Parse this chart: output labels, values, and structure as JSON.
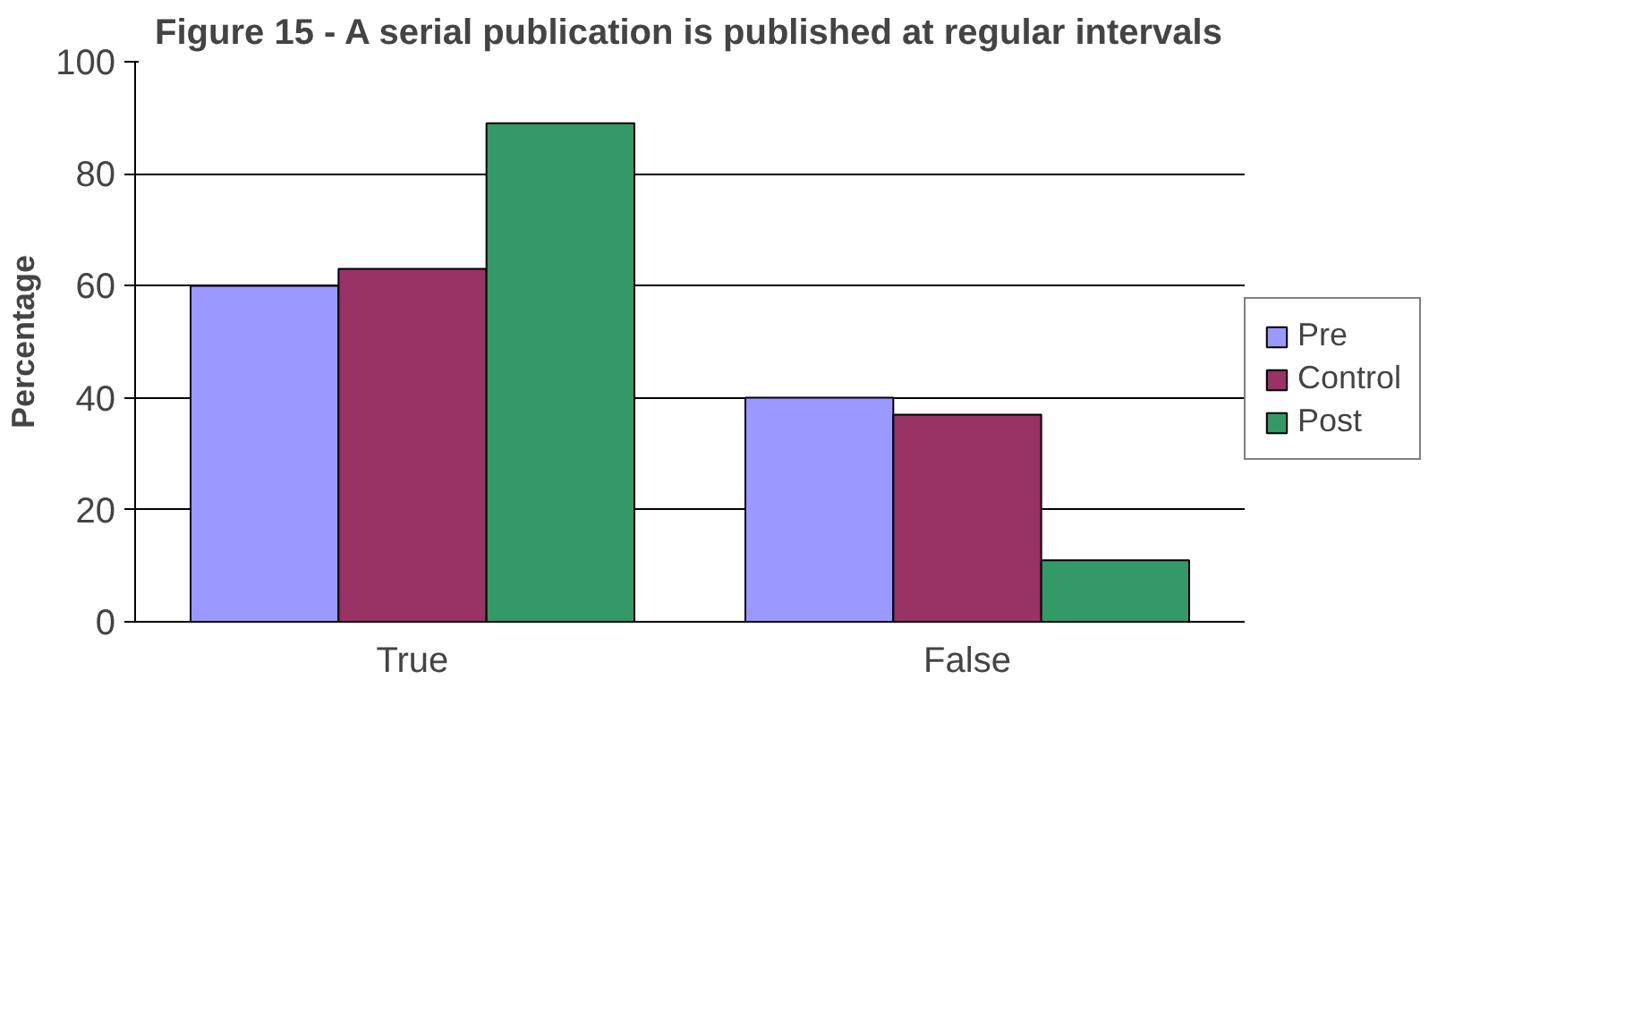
{
  "chart_data": {
    "type": "bar",
    "title": "Figure 15 - A serial publication is published at regular intervals",
    "ylabel": "Percentage",
    "categories": [
      "True",
      "False"
    ],
    "series": [
      {
        "name": "Pre",
        "color": "#9999ff",
        "values": [
          60,
          40
        ]
      },
      {
        "name": "Control",
        "color": "#993366",
        "values": [
          63,
          37
        ]
      },
      {
        "name": "Post",
        "color": "#339966",
        "values": [
          89,
          11
        ]
      }
    ],
    "ylim": [
      0,
      100
    ],
    "yticks": [
      0,
      20,
      40,
      60,
      80,
      100
    ],
    "grid": "y",
    "legend": "right"
  }
}
